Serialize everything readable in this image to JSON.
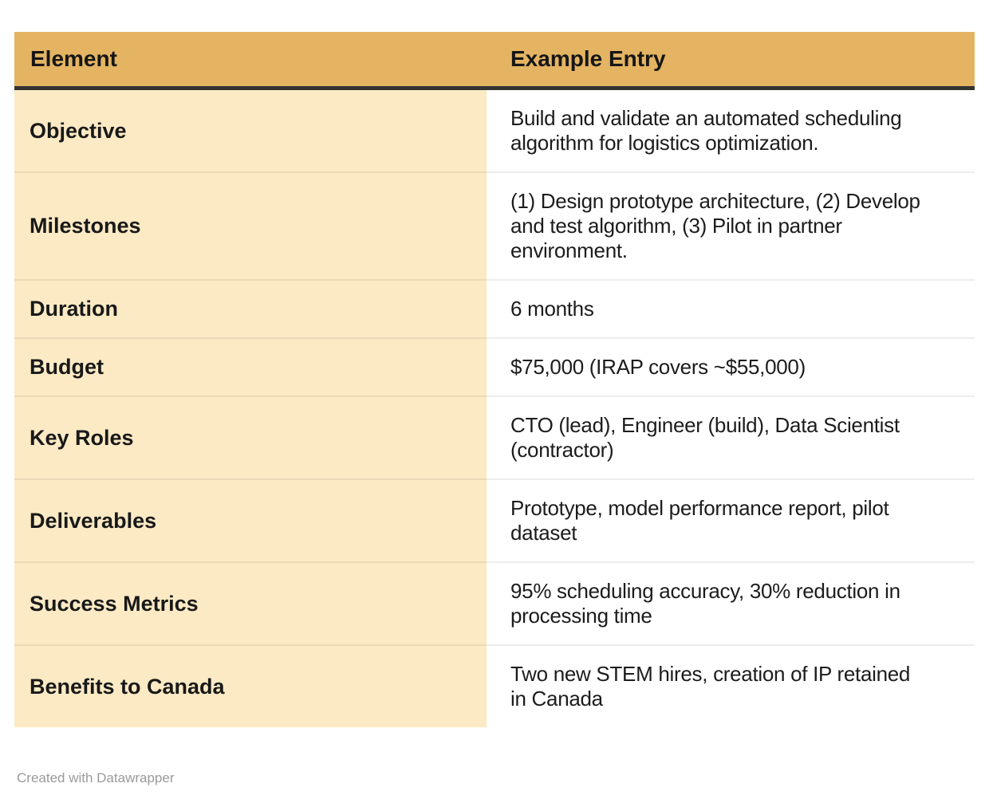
{
  "chart_data": {
    "type": "table",
    "title": "",
    "columns": [
      "Element",
      "Example Entry"
    ],
    "rows": [
      [
        "Objective",
        "Build and validate an automated scheduling algorithm for logistics optimization."
      ],
      [
        "Milestones",
        "(1) Design prototype architecture, (2) Develop and test algorithm, (3) Pilot in partner environment."
      ],
      [
        "Duration",
        "6 months"
      ],
      [
        "Budget",
        "$75,000 (IRAP covers ~$55,000)"
      ],
      [
        "Key Roles",
        "CTO (lead), Engineer (build), Data Scientist (contractor)"
      ],
      [
        "Deliverables",
        "Prototype, model performance report, pilot dataset"
      ],
      [
        "Success Metrics",
        "95% scheduling accuracy, 30% reduction in processing time"
      ],
      [
        "Benefits to Canada",
        "Two new STEM hires, creation of IP retained in Canada"
      ]
    ],
    "layout": {
      "header_background": "#e4b463",
      "label_column_background": "#fceac5",
      "gridlines": "horizontal-only"
    }
  },
  "table": {
    "header": {
      "element": "Element",
      "example": "Example Entry"
    },
    "rows": [
      {
        "element": "Objective",
        "example_lines": [
          "Build and validate an automated scheduling",
          "algorithm for logistics optimization."
        ]
      },
      {
        "element": "Milestones",
        "example_lines": [
          "(1) Design prototype architecture, (2) Develop",
          "and test algorithm, (3) Pilot in partner",
          "environment."
        ]
      },
      {
        "element": "Duration",
        "example_lines": [
          "6 months"
        ]
      },
      {
        "element": "Budget",
        "example_lines": [
          "$75,000 (IRAP covers ~$55,000)"
        ]
      },
      {
        "element": "Key Roles",
        "example_lines": [
          "CTO (lead), Engineer (build), Data Scientist",
          "(contractor)"
        ]
      },
      {
        "element": "Deliverables",
        "example_lines": [
          "Prototype, model performance report, pilot",
          "dataset"
        ]
      },
      {
        "element": "Success Metrics",
        "example_lines": [
          "95% scheduling accuracy, 30% reduction in",
          "processing time"
        ]
      },
      {
        "element": "Benefits to Canada",
        "example_lines": [
          "Two new STEM hires, creation of IP retained",
          "in Canada"
        ]
      }
    ]
  },
  "footer": {
    "credit": "Created with Datawrapper"
  },
  "colors": {
    "page_bg": "#ffffff",
    "header_bg": "#e4b463",
    "header_border": "#343330",
    "label_bg": "#fceac5",
    "row_border": "#ececec",
    "text": "#191919",
    "credit_text": "#9a9a9a"
  }
}
